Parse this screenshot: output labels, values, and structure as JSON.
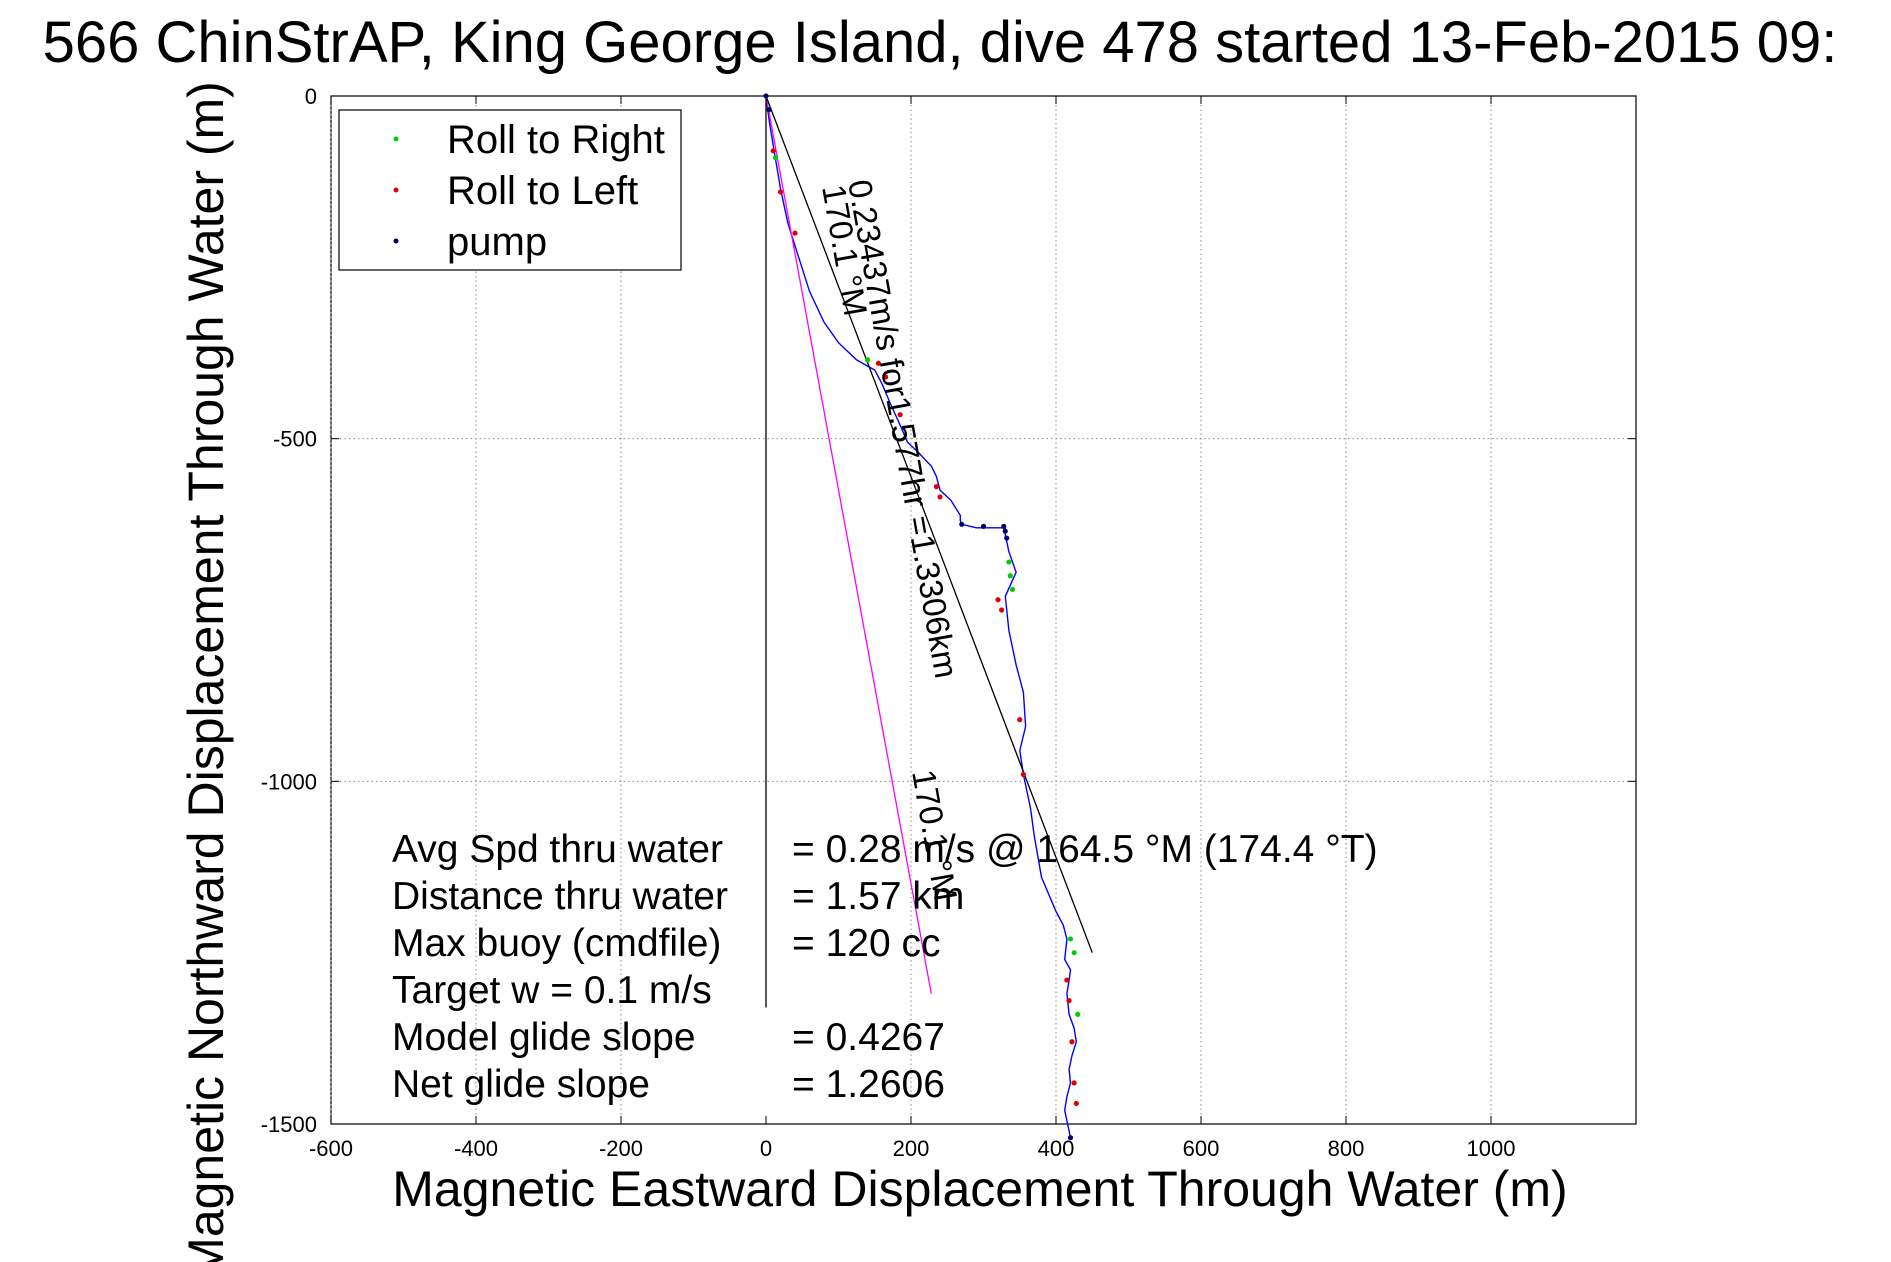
{
  "chart_data": {
    "type": "scatter",
    "title": "566 ChinStrAP, King George Island, dive 478 started 13-Feb-2015 09:",
    "xlabel": "Magnetic Eastward Displacement Through Water (m)",
    "ylabel": "Magnetic Northward Displacement Through Water (m)",
    "xlim": [
      -600,
      1200
    ],
    "ylim": [
      -1500,
      0
    ],
    "xticks": [
      -600,
      -400,
      -200,
      0,
      200,
      400,
      600,
      800,
      1000
    ],
    "yticks": [
      0,
      -500,
      -1000,
      -1500
    ],
    "grid": true,
    "legend_placement": "top-left",
    "legend": [
      {
        "label": "Roll to Right",
        "color": "#00d000"
      },
      {
        "label": "Roll to Left",
        "color": "#e00000"
      },
      {
        "label": "pump",
        "color": "#000070"
      }
    ],
    "series": [
      {
        "kind": "track",
        "color": "#0000ff",
        "x": [
          0,
          5,
          12,
          20,
          30,
          45,
          60,
          80,
          100,
          125,
          150,
          160,
          172,
          185,
          195,
          210,
          228,
          235,
          240,
          255,
          268,
          268,
          270,
          290,
          315,
          330,
          330,
          335,
          345,
          330,
          335,
          345,
          355,
          358,
          350,
          355,
          365,
          370,
          375,
          380,
          392,
          400,
          410,
          415,
          412,
          420,
          418,
          415,
          418,
          425,
          428,
          422,
          418,
          420,
          415,
          412,
          416,
          420
        ],
        "y": [
          0,
          -40,
          -85,
          -135,
          -185,
          -235,
          -285,
          -330,
          -360,
          -385,
          -400,
          -420,
          -450,
          -480,
          -505,
          -520,
          -540,
          -555,
          -575,
          -590,
          -612,
          -620,
          -625,
          -630,
          -630,
          -630,
          -640,
          -665,
          -695,
          -730,
          -780,
          -830,
          -870,
          -920,
          -955,
          -990,
          -1040,
          -1080,
          -1110,
          -1140,
          -1170,
          -1190,
          -1210,
          -1230,
          -1260,
          -1275,
          -1290,
          -1310,
          -1340,
          -1360,
          -1380,
          -1400,
          -1420,
          -1440,
          -1460,
          -1480,
          -1500,
          -1520
        ]
      },
      {
        "kind": "current",
        "color": "#ff00ff",
        "x": [
          0,
          228
        ],
        "y": [
          0,
          -1310
        ]
      },
      {
        "kind": "heading-line",
        "color": "#000000",
        "x": [
          0,
          450
        ],
        "y": [
          0,
          -1250
        ]
      },
      {
        "kind": "vertical-line",
        "color": "#000000",
        "x": [
          0,
          0
        ],
        "y": [
          0,
          -1330
        ]
      },
      {
        "name": "Roll to Left",
        "color": "#e00000",
        "x": [
          10,
          20,
          40,
          155,
          165,
          185,
          235,
          240,
          320,
          325,
          350,
          355,
          415,
          418,
          422,
          425,
          428
        ],
        "y": [
          -80,
          -140,
          -200,
          -390,
          -410,
          -465,
          -570,
          -585,
          -735,
          -750,
          -910,
          -990,
          -1290,
          -1320,
          -1380,
          -1440,
          -1470
        ]
      },
      {
        "name": "Roll to Right",
        "color": "#00d000",
        "x": [
          13,
          140,
          335,
          337,
          340,
          420,
          425,
          430
        ],
        "y": [
          -90,
          -385,
          -680,
          -700,
          -720,
          -1230,
          -1250,
          -1340
        ]
      },
      {
        "name": "pump",
        "color": "#000070",
        "x": [
          0,
          4,
          270,
          300,
          328,
          330,
          332,
          420
        ],
        "y": [
          0,
          -20,
          -625,
          -628,
          -628,
          -635,
          -645,
          -1520
        ]
      }
    ],
    "annotations": {
      "current_label": "0.23437m/s for1.577hr =1.3306km",
      "current_heading_top": "170.1 °M",
      "current_heading_bottom": "170.1 °M"
    },
    "stats": [
      {
        "label": "Avg Spd thru water",
        "value": "=  0.28 m/s @ 164.5 °M (174.4 °T)"
      },
      {
        "label": "Distance thru water",
        "value": "=  1.57 km"
      },
      {
        "label": "Max buoy (cmdfile)",
        "value": "= 120 cc"
      },
      {
        "label": "Target w    = 0.1 m/s",
        "value": ""
      },
      {
        "label": "Model glide slope",
        "value": "= 0.4267"
      },
      {
        "label": "Net glide slope",
        "value": "= 1.2606"
      }
    ]
  }
}
